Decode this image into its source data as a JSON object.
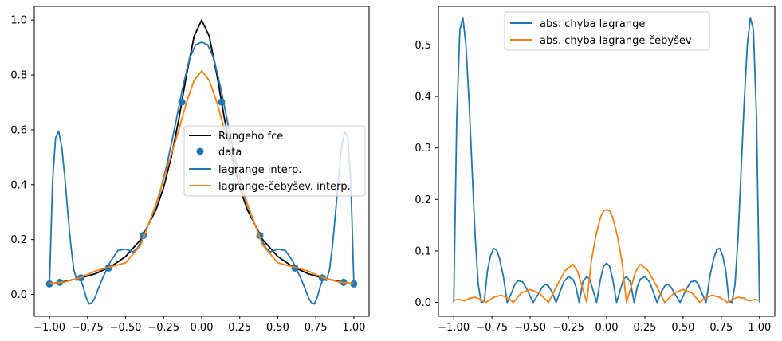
{
  "chart_data": [
    {
      "type": "line",
      "title": "",
      "xlabel": "",
      "ylabel": "",
      "xlim": [
        -1.1,
        1.1
      ],
      "ylim": [
        -0.08,
        1.05
      ],
      "xticks": [
        -1.0,
        -0.75,
        -0.5,
        -0.25,
        0.0,
        0.25,
        0.5,
        0.75,
        1.0
      ],
      "xtick_labels": [
        "−1.00",
        "−0.75",
        "−0.50",
        "−0.25",
        "0.00",
        "0.25",
        "0.50",
        "0.75",
        "1.00"
      ],
      "yticks": [
        0.0,
        0.2,
        0.4,
        0.6,
        0.8,
        1.0
      ],
      "ytick_labels": [
        "0.0",
        "0.2",
        "0.4",
        "0.6",
        "0.8",
        "1.0"
      ],
      "grid": false,
      "legend_position": "center-right",
      "series": [
        {
          "name": "Rungeho fce",
          "kind": "line",
          "color": "#000000",
          "x": [
            -1.0,
            -0.9,
            -0.8,
            -0.7,
            -0.6,
            -0.5,
            -0.4,
            -0.3,
            -0.25,
            -0.2,
            -0.15,
            -0.1,
            -0.05,
            0.0,
            0.05,
            0.1,
            0.15,
            0.2,
            0.25,
            0.3,
            0.4,
            0.5,
            0.6,
            0.7,
            0.8,
            0.9,
            1.0
          ],
          "y": [
            0.038,
            0.047,
            0.059,
            0.075,
            0.1,
            0.138,
            0.2,
            0.308,
            0.39,
            0.5,
            0.64,
            0.8,
            0.941,
            1.0,
            0.941,
            0.8,
            0.64,
            0.5,
            0.39,
            0.308,
            0.2,
            0.138,
            0.1,
            0.075,
            0.059,
            0.047,
            0.038
          ]
        },
        {
          "name": "data",
          "kind": "scatter",
          "color": "#1f77b4",
          "x": [
            -1.0,
            -0.9325,
            -0.7933,
            -0.6125,
            -0.3826,
            -0.1305,
            0.1305,
            0.3826,
            0.6125,
            0.7933,
            0.9325,
            1.0
          ],
          "y": [
            0.038,
            0.044,
            0.06,
            0.096,
            0.215,
            0.701,
            0.701,
            0.215,
            0.096,
            0.06,
            0.044,
            0.038
          ]
        },
        {
          "name": "lagrange interp.",
          "kind": "line",
          "color": "#1f77b4",
          "x": [
            -1.0,
            -0.98,
            -0.96,
            -0.94,
            -0.92,
            -0.9,
            -0.88,
            -0.86,
            -0.84,
            -0.82,
            -0.8,
            -0.78,
            -0.76,
            -0.74,
            -0.72,
            -0.7,
            -0.68,
            -0.65,
            -0.6,
            -0.55,
            -0.5,
            -0.45,
            -0.42,
            -0.38,
            -0.33,
            -0.28,
            -0.23,
            -0.18,
            -0.13,
            -0.08,
            -0.04,
            0.0,
            0.04,
            0.08,
            0.13,
            0.18,
            0.23,
            0.28,
            0.33,
            0.38,
            0.42,
            0.45,
            0.5,
            0.55,
            0.6,
            0.65,
            0.68,
            0.7,
            0.72,
            0.74,
            0.76,
            0.78,
            0.8,
            0.82,
            0.84,
            0.86,
            0.88,
            0.9,
            0.92,
            0.94,
            0.96,
            0.98,
            1.0
          ],
          "y": [
            0.04,
            0.41,
            0.57,
            0.595,
            0.54,
            0.43,
            0.3,
            0.18,
            0.09,
            0.05,
            0.06,
            0.03,
            -0.01,
            -0.035,
            -0.03,
            -0.01,
            0.02,
            0.06,
            0.12,
            0.16,
            0.165,
            0.155,
            0.17,
            0.215,
            0.28,
            0.36,
            0.47,
            0.6,
            0.74,
            0.86,
            0.91,
            0.92,
            0.91,
            0.86,
            0.74,
            0.6,
            0.47,
            0.36,
            0.28,
            0.215,
            0.17,
            0.155,
            0.165,
            0.16,
            0.12,
            0.06,
            0.02,
            -0.01,
            -0.03,
            -0.035,
            -0.01,
            0.03,
            0.06,
            0.05,
            0.09,
            0.18,
            0.3,
            0.43,
            0.54,
            0.595,
            0.57,
            0.41,
            0.04
          ]
        },
        {
          "name": "lagrange-čebyšev. interp.",
          "kind": "line",
          "color": "#ff7f0e",
          "x": [
            -1.0,
            -0.9,
            -0.8,
            -0.7,
            -0.6,
            -0.5,
            -0.4,
            -0.3,
            -0.2,
            -0.15,
            -0.1,
            -0.05,
            0.0,
            0.05,
            0.1,
            0.15,
            0.2,
            0.3,
            0.4,
            0.5,
            0.6,
            0.7,
            0.8,
            0.9,
            1.0
          ],
          "y": [
            0.04,
            0.045,
            0.06,
            0.085,
            0.1,
            0.115,
            0.18,
            0.33,
            0.51,
            0.6,
            0.7,
            0.78,
            0.815,
            0.78,
            0.7,
            0.6,
            0.51,
            0.33,
            0.18,
            0.115,
            0.1,
            0.085,
            0.06,
            0.045,
            0.04
          ]
        }
      ]
    },
    {
      "type": "line",
      "title": "",
      "xlabel": "",
      "ylabel": "",
      "xlim": [
        -1.1,
        1.1
      ],
      "ylim": [
        -0.027,
        0.575
      ],
      "xticks": [
        -1.0,
        -0.75,
        -0.5,
        -0.25,
        0.0,
        0.25,
        0.5,
        0.75,
        1.0
      ],
      "xtick_labels": [
        "−1.00",
        "−0.75",
        "−0.50",
        "−0.25",
        "0.00",
        "0.25",
        "0.50",
        "0.75",
        "1.00"
      ],
      "yticks": [
        0.0,
        0.1,
        0.2,
        0.3,
        0.4,
        0.5
      ],
      "ytick_labels": [
        "0.0",
        "0.1",
        "0.2",
        "0.3",
        "0.4",
        "0.5"
      ],
      "grid": false,
      "legend_position": "upper-center",
      "series": [
        {
          "name": "abs. chyba lagrange",
          "kind": "line",
          "color": "#1f77b4",
          "x": [
            -1.0,
            -0.98,
            -0.96,
            -0.94,
            -0.92,
            -0.9,
            -0.88,
            -0.86,
            -0.84,
            -0.82,
            -0.8,
            -0.78,
            -0.76,
            -0.74,
            -0.72,
            -0.7,
            -0.675,
            -0.65,
            -0.62,
            -0.6,
            -0.58,
            -0.55,
            -0.52,
            -0.5,
            -0.48,
            -0.45,
            -0.42,
            -0.4,
            -0.38,
            -0.36,
            -0.33,
            -0.3,
            -0.28,
            -0.25,
            -0.22,
            -0.2,
            -0.18,
            -0.155,
            -0.13,
            -0.11,
            -0.09,
            -0.065,
            -0.04,
            -0.02,
            0.0,
            0.02,
            0.04,
            0.065,
            0.09,
            0.11,
            0.13,
            0.155,
            0.18,
            0.2,
            0.22,
            0.25,
            0.28,
            0.3,
            0.33,
            0.36,
            0.38,
            0.4,
            0.42,
            0.45,
            0.48,
            0.5,
            0.52,
            0.55,
            0.58,
            0.6,
            0.62,
            0.65,
            0.675,
            0.7,
            0.72,
            0.74,
            0.76,
            0.78,
            0.8,
            0.82,
            0.84,
            0.86,
            0.88,
            0.9,
            0.92,
            0.94,
            0.96,
            0.98,
            1.0
          ],
          "y": [
            0.0,
            0.36,
            0.53,
            0.553,
            0.5,
            0.39,
            0.26,
            0.13,
            0.035,
            0.0,
            0.002,
            0.06,
            0.09,
            0.105,
            0.102,
            0.085,
            0.05,
            0.0,
            0.02,
            0.035,
            0.042,
            0.04,
            0.025,
            0.012,
            0.0,
            0.015,
            0.03,
            0.035,
            0.032,
            0.022,
            0.0,
            0.025,
            0.04,
            0.05,
            0.045,
            0.03,
            0.0,
            0.04,
            0.05,
            0.045,
            0.025,
            0.0,
            0.045,
            0.07,
            0.076,
            0.07,
            0.045,
            0.0,
            0.025,
            0.045,
            0.05,
            0.04,
            0.0,
            0.03,
            0.045,
            0.05,
            0.04,
            0.025,
            0.0,
            0.022,
            0.032,
            0.035,
            0.03,
            0.015,
            0.0,
            0.012,
            0.025,
            0.04,
            0.042,
            0.035,
            0.02,
            0.0,
            0.05,
            0.085,
            0.102,
            0.105,
            0.09,
            0.06,
            0.002,
            0.0,
            0.035,
            0.13,
            0.26,
            0.39,
            0.5,
            0.553,
            0.53,
            0.36,
            0.0
          ]
        },
        {
          "name": "abs. chyba lagrange-čebyšev",
          "kind": "line",
          "color": "#ff7f0e",
          "x": [
            -1.0,
            -0.97,
            -0.93,
            -0.9,
            -0.86,
            -0.82,
            -0.79,
            -0.74,
            -0.69,
            -0.64,
            -0.61,
            -0.56,
            -0.5,
            -0.44,
            -0.38,
            -0.33,
            -0.27,
            -0.22,
            -0.19,
            -0.155,
            -0.13,
            -0.1,
            -0.07,
            -0.04,
            -0.02,
            0.0,
            0.02,
            0.04,
            0.07,
            0.1,
            0.13,
            0.155,
            0.19,
            0.22,
            0.27,
            0.33,
            0.38,
            0.44,
            0.5,
            0.56,
            0.61,
            0.64,
            0.69,
            0.74,
            0.79,
            0.82,
            0.86,
            0.9,
            0.93,
            0.97,
            1.0
          ],
          "y": [
            0.004,
            0.006,
            0.003,
            0.008,
            0.01,
            0.006,
            0.0,
            0.01,
            0.014,
            0.008,
            0.0,
            0.018,
            0.025,
            0.018,
            0.0,
            0.03,
            0.062,
            0.074,
            0.06,
            0.025,
            0.0,
            0.08,
            0.13,
            0.165,
            0.178,
            0.18,
            0.178,
            0.165,
            0.13,
            0.08,
            0.0,
            0.025,
            0.06,
            0.074,
            0.062,
            0.03,
            0.0,
            0.018,
            0.025,
            0.018,
            0.0,
            0.008,
            0.014,
            0.01,
            0.0,
            0.006,
            0.01,
            0.008,
            0.003,
            0.006,
            0.004
          ]
        }
      ]
    }
  ]
}
